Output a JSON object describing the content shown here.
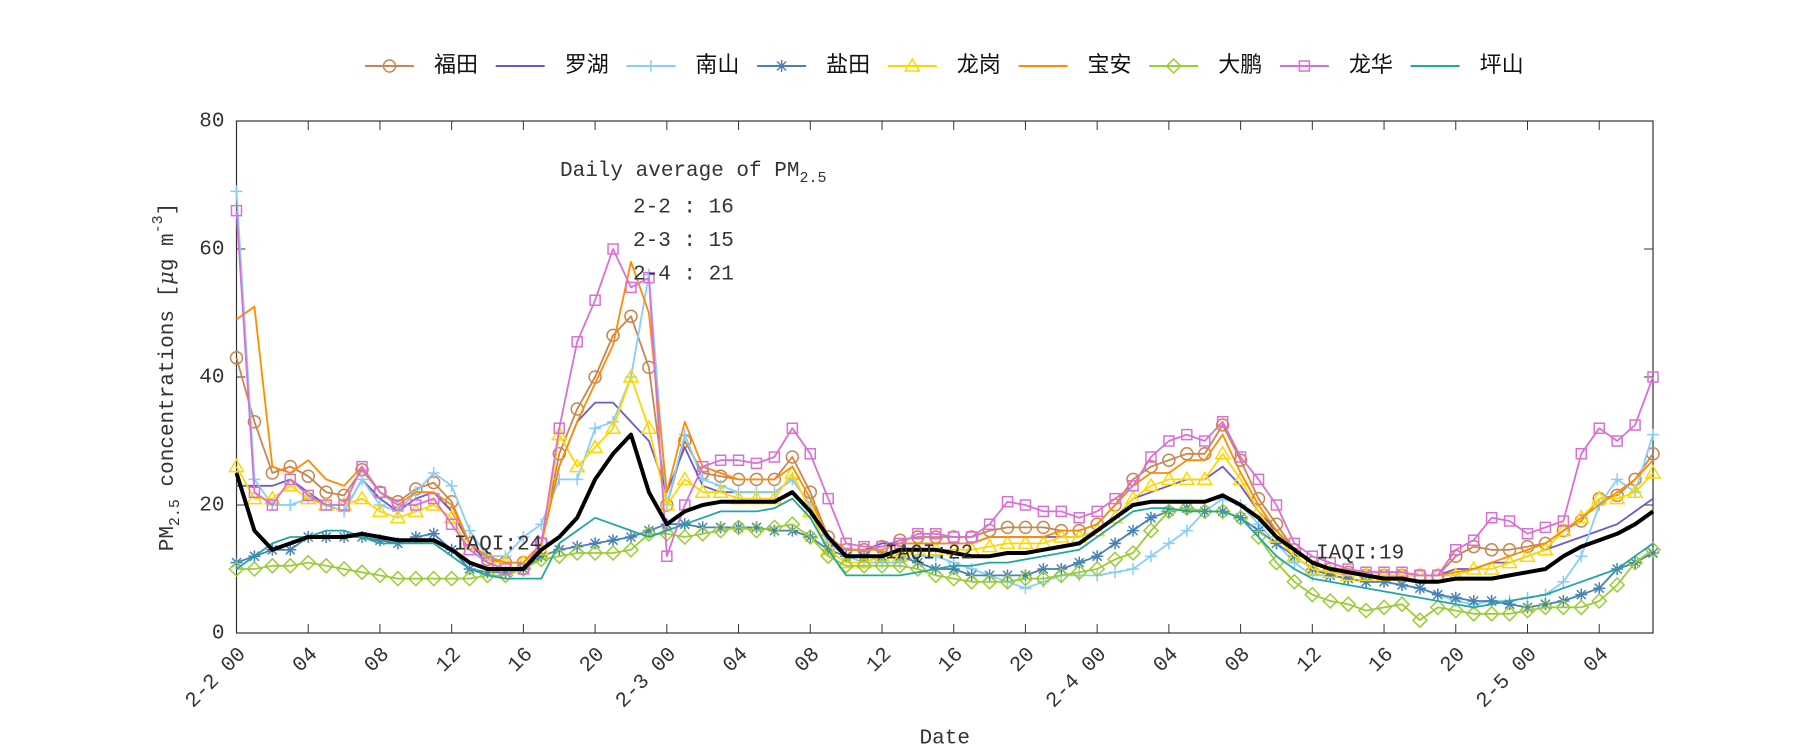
{
  "chart_data": {
    "type": "line",
    "categories": [
      "2-2 00",
      null,
      null,
      null,
      "04",
      null,
      null,
      null,
      "08",
      null,
      null,
      null,
      "12",
      null,
      null,
      null,
      "16",
      null,
      null,
      null,
      "20",
      null,
      null,
      null,
      "2-3 00",
      null,
      null,
      null,
      "04",
      null,
      null,
      null,
      "08",
      null,
      null,
      null,
      "12",
      null,
      null,
      null,
      "16",
      null,
      null,
      null,
      "20",
      null,
      null,
      null,
      "2-4 00",
      null,
      null,
      null,
      "04",
      null,
      null,
      null,
      "08",
      null,
      null,
      null,
      "12",
      null,
      null,
      null,
      "16",
      null,
      null,
      null,
      "20",
      null,
      null,
      null,
      "2-5 00",
      null,
      null,
      null,
      "04",
      null,
      null,
      null
    ],
    "xlabel": "Date",
    "ylabel": [
      {
        "text": "PM"
      },
      {
        "text": "2.5",
        "style": "sub"
      },
      {
        "text": " concentrations ["
      },
      {
        "text": "μ",
        "style": "italic"
      },
      {
        "text": "g m"
      },
      {
        "text": "-3",
        "style": "sup"
      },
      {
        "text": "]"
      }
    ],
    "ylim": [
      0,
      80
    ],
    "yticks": [
      0,
      20,
      40,
      60,
      80
    ],
    "series": [
      {
        "name": "福田",
        "color": "#c8864e",
        "marker": "circle",
        "values": [
          43,
          33,
          25,
          26,
          24.5,
          22,
          21.5,
          25.5,
          22,
          20.5,
          22.5,
          23.5,
          20.5,
          14,
          11.5,
          11,
          11,
          14,
          28,
          35,
          40,
          46.5,
          49.5,
          41.5,
          20,
          30,
          25,
          24.5,
          24,
          24,
          24,
          27.5,
          22,
          15,
          13,
          13,
          13.5,
          14.5,
          15,
          15,
          15,
          15,
          16,
          16.5,
          16.5,
          16.5,
          16,
          16,
          17,
          20,
          24,
          26,
          27,
          28,
          28,
          32.5,
          27,
          21,
          17,
          13,
          11,
          10,
          9.5,
          9,
          9,
          9,
          9,
          9,
          12,
          13.5,
          13,
          13,
          13.5,
          14,
          16,
          17.5,
          21,
          21.5,
          24,
          28
        ]
      },
      {
        "name": "罗湖",
        "color": "#6a5acd",
        "marker": "none",
        "values": [
          23,
          23,
          23,
          24,
          22,
          20,
          19,
          24,
          21,
          19,
          21,
          22,
          19,
          14,
          11,
          10,
          10,
          14,
          26,
          33,
          36,
          36,
          33,
          30,
          22,
          29,
          23,
          22,
          22,
          22,
          22,
          24,
          20,
          14,
          13,
          13,
          14,
          14,
          14,
          14,
          14,
          14,
          15,
          15,
          15,
          15,
          15,
          15,
          16,
          18,
          21,
          22,
          23,
          24,
          24,
          26,
          23,
          19,
          16,
          13,
          11,
          10,
          9.5,
          9,
          9,
          9,
          9,
          9,
          10,
          10,
          11,
          11,
          12,
          13,
          14,
          15,
          16,
          17,
          19,
          21
        ]
      },
      {
        "name": "南山",
        "color": "#87cefa",
        "marker": "plus",
        "values": [
          69,
          24,
          20,
          20,
          21,
          20,
          19,
          24,
          20,
          19,
          22,
          25,
          23,
          16,
          12,
          12,
          15,
          17,
          24,
          24,
          32,
          33,
          40,
          56,
          20,
          31,
          24,
          23,
          22,
          22,
          22,
          24,
          20,
          14,
          12,
          11,
          11,
          11,
          12,
          12,
          11,
          10,
          9,
          8,
          7,
          8,
          9,
          9,
          9,
          9.5,
          10,
          12,
          14,
          16,
          19,
          21,
          20,
          17,
          14,
          11,
          9,
          9,
          8.5,
          8,
          8,
          7.5,
          7,
          6,
          5,
          4.5,
          5,
          5,
          5.5,
          6,
          8,
          12,
          20,
          24,
          22,
          31
        ]
      },
      {
        "name": "盐田",
        "color": "#4682b4",
        "marker": "asterisk",
        "values": [
          11,
          12,
          13,
          13,
          15,
          15,
          15,
          15,
          14.5,
          14,
          15,
          15.5,
          13,
          10,
          9.5,
          9.5,
          10,
          12,
          13,
          13.5,
          14,
          14.5,
          15,
          16,
          17,
          17,
          16.5,
          16.5,
          16.5,
          16.5,
          16,
          16,
          15,
          13,
          12,
          12,
          12,
          12,
          11,
          10,
          10,
          9,
          9,
          9,
          9,
          10,
          10,
          11,
          12,
          14,
          16,
          18,
          19,
          19.5,
          19,
          19,
          18,
          16,
          14,
          12,
          10,
          9,
          8.5,
          8,
          8,
          7.5,
          7,
          6,
          5.5,
          5,
          5,
          4.5,
          4,
          4.5,
          5,
          6,
          7,
          10,
          11,
          12.5
        ]
      },
      {
        "name": "龙岗",
        "color": "#ffd700",
        "marker": "triangle",
        "values": [
          26,
          21,
          21,
          23,
          21,
          20,
          20,
          21,
          19,
          18,
          19,
          20,
          18,
          13,
          11,
          11,
          11,
          13,
          31,
          26,
          29,
          32,
          40,
          32,
          20,
          24,
          22,
          22,
          21,
          21,
          21,
          25,
          19,
          13,
          11,
          11,
          12,
          12,
          13,
          13,
          13,
          13,
          13.5,
          14,
          14,
          14,
          15,
          15,
          16,
          18,
          21,
          23,
          24,
          24,
          24,
          28,
          24,
          19,
          15,
          12,
          10,
          9.5,
          9,
          9,
          9,
          9,
          9,
          9,
          9,
          10,
          10,
          11,
          12,
          13,
          16,
          18,
          21,
          21,
          22,
          25
        ]
      },
      {
        "name": "宝安",
        "color": "#ff8c00",
        "marker": "none",
        "values": [
          49,
          51,
          26,
          25,
          27,
          24,
          23,
          26,
          22,
          20,
          22,
          22,
          20,
          14,
          12,
          11,
          11,
          14,
          26,
          33,
          39,
          45,
          58,
          50,
          22,
          33,
          26,
          25,
          24,
          24,
          24,
          26,
          21,
          15,
          13,
          13,
          13,
          14,
          14,
          14,
          14,
          14,
          15,
          15,
          15,
          15,
          16,
          16,
          17,
          20,
          23,
          25,
          25,
          27,
          27,
          31,
          25,
          20,
          16,
          13,
          11,
          10,
          10,
          9.5,
          9.5,
          9.5,
          9,
          9,
          9.5,
          10,
          11,
          12,
          13,
          14,
          16,
          18,
          20,
          22,
          24,
          27
        ]
      },
      {
        "name": "大鹏",
        "color": "#9acd32",
        "marker": "diamond",
        "values": [
          10,
          10,
          10.5,
          10.5,
          11,
          10.5,
          10,
          9.5,
          9,
          8.5,
          8.5,
          8.5,
          8.5,
          8.5,
          9,
          9,
          10,
          11.5,
          12,
          12.5,
          12.5,
          12.5,
          13,
          15.5,
          15.5,
          15,
          15.5,
          16,
          16.5,
          16,
          16.5,
          17,
          15,
          12,
          10.5,
          10.5,
          10.5,
          10.5,
          10,
          9,
          8.5,
          8,
          8,
          8,
          8.5,
          8.5,
          9,
          9.5,
          10,
          11.5,
          12.5,
          16,
          19,
          19.5,
          19,
          19,
          18,
          15,
          11,
          8,
          6,
          5,
          4.5,
          3.5,
          4,
          4.5,
          2,
          4,
          3.5,
          3,
          3,
          3,
          3.5,
          4,
          4,
          4,
          5,
          7.5,
          11,
          13
        ]
      },
      {
        "name": "龙华",
        "color": "#da70d6",
        "marker": "square",
        "values": [
          66,
          22,
          20,
          24,
          21.5,
          20,
          20,
          26,
          22,
          20,
          20,
          21,
          17,
          13,
          11,
          10,
          10,
          14,
          32,
          45.5,
          52,
          60,
          54,
          55.5,
          12,
          20,
          26,
          27,
          27,
          26.5,
          27.5,
          32,
          28,
          21,
          14,
          13.5,
          13.5,
          14,
          15.5,
          15.5,
          15,
          15,
          17,
          20.5,
          20,
          19,
          19,
          18,
          19,
          21,
          23,
          27.5,
          30,
          31,
          30,
          33,
          27.5,
          24,
          20,
          14,
          12,
          11,
          10,
          9.5,
          9.5,
          9.5,
          9,
          9,
          13,
          14.5,
          18,
          17.5,
          15.5,
          16.5,
          17.5,
          28,
          32,
          30,
          32.5,
          40
        ]
      },
      {
        "name": "坪山",
        "color": "#20a8a0",
        "marker": "none",
        "values": [
          10,
          12,
          14,
          15,
          15,
          16,
          16,
          15,
          14,
          14,
          14,
          14,
          12,
          10,
          9,
          8.5,
          8.5,
          8.5,
          14,
          16,
          18,
          17,
          16,
          15,
          16,
          17,
          18,
          19,
          19,
          19,
          19.5,
          21,
          18,
          13,
          9,
          9,
          9,
          9,
          9.5,
          10,
          10.5,
          10.5,
          11,
          11,
          11.5,
          12,
          12.5,
          13,
          15,
          17,
          19,
          19.5,
          19.5,
          19,
          19,
          19,
          18,
          15,
          12,
          10,
          8.5,
          8,
          7.5,
          7,
          6.5,
          6,
          5.5,
          5,
          4.5,
          4,
          4.5,
          5,
          5.5,
          6,
          7,
          8,
          9,
          10,
          12,
          14
        ]
      }
    ],
    "average": {
      "color": "#000000",
      "values": [
        25,
        16,
        13,
        14,
        15,
        15,
        15,
        15.5,
        15,
        14.5,
        14.5,
        14.5,
        13,
        11,
        10,
        10,
        10,
        13,
        15,
        18,
        24,
        28,
        31,
        22,
        17,
        19,
        20,
        20.5,
        20.5,
        20.5,
        20.5,
        22,
        19,
        15,
        12,
        12,
        12,
        13,
        13,
        13,
        12.5,
        12,
        12,
        12.5,
        12.5,
        13,
        13.5,
        14,
        16,
        18,
        20,
        20.5,
        20.5,
        20.5,
        20.5,
        21.5,
        20,
        18,
        15,
        13,
        11,
        10,
        9.5,
        9,
        8.5,
        8.5,
        8,
        8,
        8.5,
        8.5,
        8.5,
        9,
        9.5,
        10,
        12,
        13.5,
        14.5,
        15.5,
        17,
        19
      ]
    },
    "annotations": {
      "daily_title": [
        {
          "text": "Daily average of PM"
        },
        {
          "text": "2.5",
          "style": "sub"
        }
      ],
      "daily": [
        "2-2 : 16",
        "2-3 : 15",
        "2-4 : 21"
      ],
      "iaqi": [
        "IAQI:24",
        "IAQI:22",
        "IAQI:19"
      ]
    },
    "grid": false,
    "legend": "top"
  }
}
